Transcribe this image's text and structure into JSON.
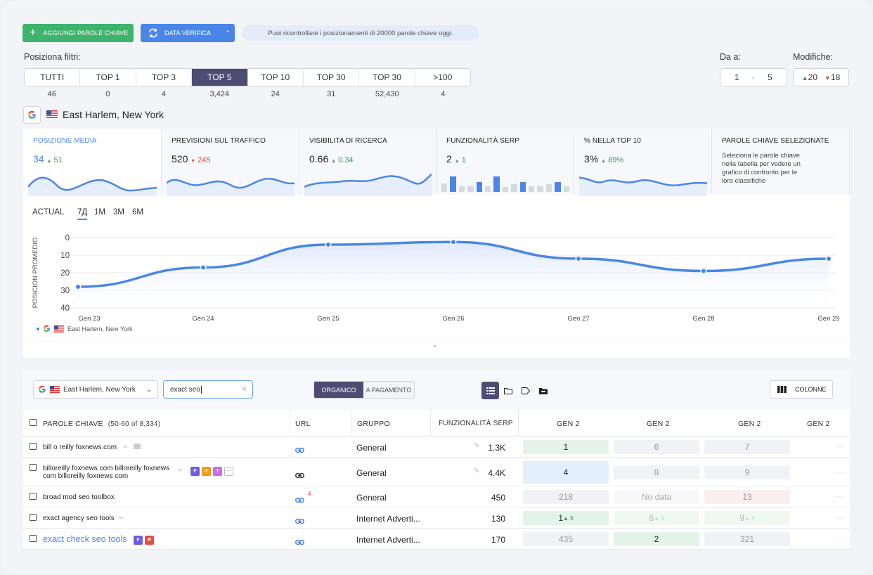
{
  "toolbar": {
    "add_keywords": "AGGIUNGI PAROLE CHIAVE",
    "verify_date": "DATA VERIFICA",
    "info": "Puoi ricontrollare i posizionamenti di 20000 parole chiave oggi."
  },
  "filters": {
    "label": "Posiziona filtri:",
    "items": [
      {
        "label": "TUTTI",
        "count": "46"
      },
      {
        "label": "TOP 1",
        "count": "0"
      },
      {
        "label": "TOP 3",
        "count": "4"
      },
      {
        "label": "TOP 5",
        "count": "3,424"
      },
      {
        "label": "TOP 10",
        "count": "24"
      },
      {
        "label": "TOP 30",
        "count": "31"
      },
      {
        "label": "TOP 30",
        "count": "52,430"
      },
      {
        "label": ">100",
        "count": "4"
      }
    ],
    "active_index": 3
  },
  "range": {
    "label": "Da a:",
    "from": "1",
    "sep": "-",
    "to": "5"
  },
  "changes": {
    "label": "Modifiche:",
    "up": "20",
    "down": "18"
  },
  "location": "East Harlem, New York",
  "cards": [
    {
      "title": "POSIZIONE MEDIA",
      "value": "34",
      "delta": "51",
      "dir": "up"
    },
    {
      "title": "PREVISIONI SUL TRAFFICO",
      "value": "520",
      "delta": "245",
      "dir": "down"
    },
    {
      "title": "VISIBILITA DI RICERCA",
      "value": "0.66",
      "delta": "0.34",
      "dir": "up"
    },
    {
      "title": "FUNZIONALITÀ SERP",
      "value": "2",
      "delta": "1",
      "dir": "up"
    },
    {
      "title": "% NELLA TOP 10",
      "value": "3%",
      "delta": "89%",
      "dir": "up"
    },
    {
      "title": "PAROLE CHIAVE SELEZIONATE",
      "text": "Seleziona le parole chiave nella tabella per vedere un grafico di confronto per le loro classifiche"
    }
  ],
  "serp_bars": [
    0.5,
    0.9,
    0.35,
    0.35,
    0.6,
    0.35,
    0.9,
    0.3,
    0.45,
    0.6,
    0.35,
    0.35,
    0.45,
    0.6,
    0.35
  ],
  "chart_tabs": {
    "actual": "ACTUAL",
    "periods": [
      "7Д",
      "1M",
      "3M",
      "6M"
    ]
  },
  "chart_data": {
    "type": "line",
    "ylabel": "POSICION PROMEDIO",
    "yticks": [
      "0",
      "10",
      "20",
      "30",
      "40"
    ],
    "ylim": [
      0,
      40
    ],
    "y_inverted": true,
    "categories": [
      "Gen 23",
      "Gen 24",
      "Gen 25",
      "Gen 26",
      "Gen 27",
      "Gen 28",
      "Gen 29"
    ],
    "series": [
      {
        "name": "East Harlem, New York",
        "values": [
          28,
          17,
          4,
          2.5,
          12,
          19,
          12
        ]
      }
    ],
    "grid": true,
    "legend": "bottom-left"
  },
  "table_toolbar": {
    "location": "East Harlem, New York",
    "search_value": "exact seo",
    "organic": "ORGANICO",
    "paid": "A PAGAMENTO",
    "columns": "COLONNE"
  },
  "table": {
    "headers": {
      "keywords": "PAROLE CHIAVE",
      "range": "(50-60 of 8,334)",
      "url": "URL",
      "group": "GRUPPO",
      "serp": "FUNZIONALITÀ SERP",
      "d1": "GEN 2",
      "d2": "GEN 2",
      "d3": "GEN 2",
      "d4": "GEN 2"
    },
    "rows": [
      {
        "keyword": "bill o reilly foxnews.com",
        "group": "General",
        "volume": "1.3K",
        "p1": "1",
        "p2": "6",
        "p3": "7"
      },
      {
        "keyword": "billoreilly foxnews com billoreilly foxnews com billoreilly foxnews com",
        "group": "General",
        "volume": "4.4K",
        "p1": "4",
        "p2": "8",
        "p3": "9"
      },
      {
        "keyword": "broad mod seo toolbox",
        "group": "General",
        "volume": "450",
        "url_count": "4",
        "p1": "218",
        "p2": "No data",
        "p3": "13"
      },
      {
        "keyword": "exact agency seo tools",
        "group": "Internet Adverti...",
        "volume": "130",
        "p1": "1",
        "p1d": "6",
        "p2": "8",
        "p2d": "3",
        "p3": "9",
        "p3d": "5"
      },
      {
        "keyword": "exact check seo tools",
        "group": "Internet Adverti...",
        "volume": "170",
        "p1": "435",
        "p2": "2",
        "p3": "321"
      }
    ],
    "badges": {
      "f": "F",
      "k": "K",
      "t": "T",
      "r": "R"
    }
  },
  "colors": {
    "green": "#3db36b",
    "blue": "#4a86e8",
    "active_tab": "#4d4c72"
  }
}
